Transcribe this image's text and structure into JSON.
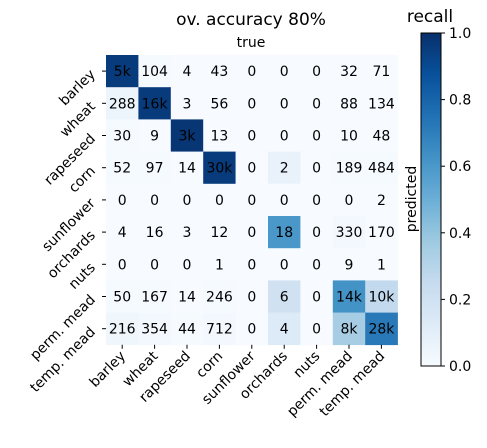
{
  "chart_data": {
    "type": "heatmap",
    "title": "ov. accuracy 80%",
    "x_axis_title": "true",
    "y_axis_title": "predicted",
    "colorbar_title": "recall",
    "colormap": "Blues",
    "colorbar_range": [
      0.0,
      1.0
    ],
    "colorbar_ticks": [
      "0.0",
      "0.2",
      "0.4",
      "0.6",
      "0.8",
      "1.0"
    ],
    "rows": [
      "barley",
      "wheat",
      "rapeseed",
      "corn",
      "sunflower",
      "orchards",
      "nuts",
      "perm. mead",
      "temp. mead"
    ],
    "columns": [
      "barley",
      "wheat",
      "rapeseed",
      "corn",
      "sunflower",
      "orchards",
      "nuts",
      "perm. mead",
      "temp. mead"
    ],
    "cell_labels": [
      [
        "5k",
        "104",
        "4",
        "43",
        "0",
        "0",
        "0",
        "32",
        "71"
      ],
      [
        "288",
        "16k",
        "3",
        "56",
        "0",
        "0",
        "0",
        "88",
        "134"
      ],
      [
        "30",
        "9",
        "3k",
        "13",
        "0",
        "0",
        "0",
        "10",
        "48"
      ],
      [
        "52",
        "97",
        "14",
        "30k",
        "0",
        "2",
        "0",
        "189",
        "484"
      ],
      [
        "0",
        "0",
        "0",
        "0",
        "0",
        "0",
        "0",
        "0",
        "2"
      ],
      [
        "4",
        "16",
        "3",
        "12",
        "0",
        "18",
        "0",
        "330",
        "170"
      ],
      [
        "0",
        "0",
        "0",
        "1",
        "0",
        "0",
        "0",
        "9",
        "1"
      ],
      [
        "50",
        "167",
        "14",
        "246",
        "0",
        "6",
        "0",
        "14k",
        "10k"
      ],
      [
        "216",
        "354",
        "44",
        "712",
        "0",
        "4",
        "0",
        "8k",
        "28k"
      ]
    ],
    "recall_values": [
      [
        0.96,
        0.01,
        0.0,
        0.0,
        0.0,
        0.0,
        0.0,
        0.0,
        0.0
      ],
      [
        0.05,
        0.96,
        0.0,
        0.0,
        0.0,
        0.0,
        0.0,
        0.0,
        0.0
      ],
      [
        0.01,
        0.0,
        0.98,
        0.0,
        0.0,
        0.0,
        0.0,
        0.0,
        0.0
      ],
      [
        0.01,
        0.01,
        0.0,
        0.96,
        0.0,
        0.07,
        0.0,
        0.01,
        0.01
      ],
      [
        0.0,
        0.0,
        0.0,
        0.0,
        0.0,
        0.0,
        0.0,
        0.0,
        0.0
      ],
      [
        0.0,
        0.0,
        0.0,
        0.0,
        0.0,
        0.6,
        0.0,
        0.02,
        0.0
      ],
      [
        0.0,
        0.0,
        0.0,
        0.0,
        0.0,
        0.0,
        0.0,
        0.0,
        0.0
      ],
      [
        0.01,
        0.01,
        0.0,
        0.01,
        0.0,
        0.2,
        0.0,
        0.62,
        0.26
      ],
      [
        0.04,
        0.02,
        0.01,
        0.02,
        0.0,
        0.13,
        0.0,
        0.35,
        0.72
      ]
    ]
  }
}
